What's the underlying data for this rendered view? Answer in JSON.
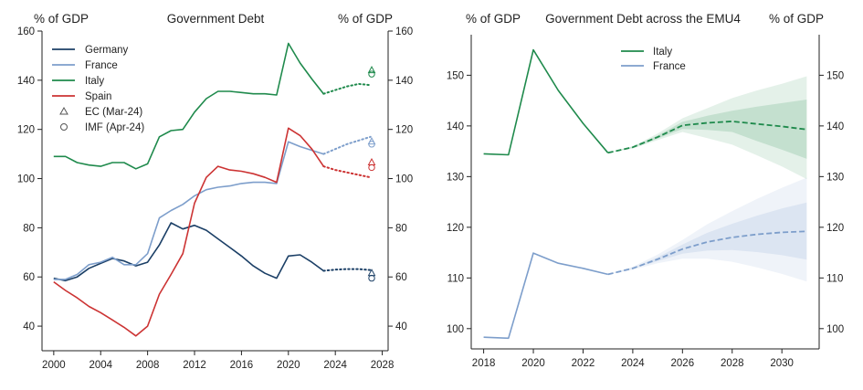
{
  "colors": {
    "germany": "#1b3f66",
    "france": "#7d9ecb",
    "italy": "#1f8a4c",
    "spain": "#cc3333",
    "axis": "#222222"
  },
  "chart_data": [
    {
      "type": "line",
      "title": "Government Debt",
      "ylabel_left": "% of GDP",
      "ylabel_right": "% of GDP",
      "xlim": [
        1999,
        2028.5
      ],
      "ylim": [
        30,
        160
      ],
      "x_ticks": [
        2000,
        2004,
        2008,
        2012,
        2016,
        2020,
        2024,
        2028
      ],
      "y_ticks": [
        40,
        60,
        80,
        100,
        120,
        140,
        160
      ],
      "legend_position": "top-left",
      "series": [
        {
          "name": "Germany",
          "color_key": "germany",
          "x": [
            2000,
            2001,
            2002,
            2003,
            2004,
            2005,
            2006,
            2007,
            2008,
            2009,
            2010,
            2011,
            2012,
            2013,
            2014,
            2015,
            2016,
            2017,
            2018,
            2019,
            2020,
            2021,
            2022,
            2023
          ],
          "values": [
            59.5,
            58.5,
            60,
            63.5,
            65.5,
            67.5,
            66.5,
            64.5,
            66,
            73,
            82,
            79.5,
            81,
            79,
            75.5,
            72,
            68.5,
            64.5,
            61.5,
            59.5,
            68.5,
            69,
            66,
            62.5
          ],
          "projection_x": [
            2023,
            2024,
            2025,
            2026,
            2027
          ],
          "projection": [
            62.5,
            63,
            63.2,
            63.2,
            62.8
          ]
        },
        {
          "name": "France",
          "color_key": "france",
          "x": [
            2000,
            2001,
            2002,
            2003,
            2004,
            2005,
            2006,
            2007,
            2008,
            2009,
            2010,
            2011,
            2012,
            2013,
            2014,
            2015,
            2016,
            2017,
            2018,
            2019,
            2020,
            2021,
            2022,
            2023
          ],
          "values": [
            59,
            59,
            61,
            65,
            66,
            68,
            65,
            65,
            69.5,
            84,
            87,
            89.5,
            93,
            95.5,
            96.5,
            97,
            98,
            98.5,
            98.5,
            98,
            115,
            113,
            111.5,
            110
          ],
          "projection_x": [
            2023,
            2024,
            2025,
            2026,
            2027
          ],
          "projection": [
            110,
            112,
            114,
            115.5,
            117
          ]
        },
        {
          "name": "Italy",
          "color_key": "italy",
          "x": [
            2000,
            2001,
            2002,
            2003,
            2004,
            2005,
            2006,
            2007,
            2008,
            2009,
            2010,
            2011,
            2012,
            2013,
            2014,
            2015,
            2016,
            2017,
            2018,
            2019,
            2020,
            2021,
            2022,
            2023
          ],
          "values": [
            109,
            109,
            106.5,
            105.5,
            105,
            106.5,
            106.5,
            104,
            106,
            117,
            119.5,
            120,
            127,
            132.5,
            135.5,
            135.5,
            135,
            134.5,
            134.5,
            134,
            155,
            147,
            140.5,
            134.5
          ],
          "projection_x": [
            2023,
            2024,
            2025,
            2026,
            2027
          ],
          "projection": [
            134.5,
            136,
            137.5,
            138.5,
            138
          ]
        },
        {
          "name": "Spain",
          "color_key": "spain",
          "x": [
            2000,
            2001,
            2002,
            2003,
            2004,
            2005,
            2006,
            2007,
            2008,
            2009,
            2010,
            2011,
            2012,
            2013,
            2014,
            2015,
            2016,
            2017,
            2018,
            2019,
            2020,
            2021,
            2022,
            2023
          ],
          "values": [
            58,
            54.5,
            51.5,
            48,
            45.5,
            42.5,
            39.5,
            36,
            40,
            53,
            61,
            69.5,
            90,
            100.5,
            105,
            103.5,
            103,
            102,
            100.5,
            98.5,
            120.5,
            117.5,
            112,
            105
          ],
          "projection_x": [
            2023,
            2024,
            2025,
            2026,
            2027
          ],
          "projection": [
            105,
            103.5,
            102.5,
            101.5,
            100.5
          ]
        }
      ],
      "markers": {
        "ec": {
          "label": "EC (Mar-24)",
          "x": 2027.1,
          "points": [
            {
              "series": "Germany",
              "value": 61.5
            },
            {
              "series": "France",
              "value": 115
            },
            {
              "series": "Italy",
              "value": 144
            },
            {
              "series": "Spain",
              "value": 106.5
            }
          ]
        },
        "imf": {
          "label": "IMF (Apr-24)",
          "x": 2027.1,
          "points": [
            {
              "series": "Germany",
              "value": 59.5
            },
            {
              "series": "France",
              "value": 114
            },
            {
              "series": "Italy",
              "value": 142.5
            },
            {
              "series": "Spain",
              "value": 104.5
            }
          ]
        }
      }
    },
    {
      "type": "line",
      "title": "Government Debt across the EMU4",
      "ylabel_left": "% of GDP",
      "ylabel_right": "% of GDP",
      "xlim": [
        2017.5,
        2031.5
      ],
      "ylim": [
        96,
        158
      ],
      "x_ticks": [
        2018,
        2020,
        2022,
        2024,
        2026,
        2028,
        2030
      ],
      "y_ticks": [
        100,
        110,
        120,
        130,
        140,
        150
      ],
      "legend_position": "top-center",
      "series": [
        {
          "name": "Italy",
          "color_key": "italy",
          "x": [
            2018,
            2019,
            2020,
            2021,
            2022,
            2023
          ],
          "values": [
            134.5,
            134.3,
            155,
            147,
            140.5,
            134.7
          ],
          "projection_x": [
            2023,
            2024,
            2025,
            2026,
            2027,
            2028,
            2029,
            2030,
            2031
          ],
          "projection": [
            134.7,
            135.8,
            137.8,
            140.1,
            140.6,
            140.9,
            140.4,
            139.9,
            139.3
          ],
          "band_outer_upper": [
            134.7,
            136,
            138.5,
            141.5,
            143.5,
            145.5,
            147,
            148.3,
            149.8
          ],
          "band_outer_lower": [
            134.7,
            135.5,
            137.2,
            138.8,
            137.6,
            136.3,
            134.2,
            132,
            129.5
          ],
          "band_inner_upper": [
            134.7,
            135.9,
            138.1,
            140.8,
            142,
            143,
            143.8,
            144.5,
            145.2
          ],
          "band_inner_lower": [
            134.7,
            135.7,
            137.5,
            139.4,
            139.2,
            138.8,
            137,
            135.3,
            133.5
          ]
        },
        {
          "name": "France",
          "color_key": "france",
          "x": [
            2018,
            2019,
            2020,
            2021,
            2022,
            2023
          ],
          "values": [
            98.3,
            98.1,
            114.9,
            112.9,
            111.9,
            110.7
          ],
          "projection_x": [
            2023,
            2024,
            2025,
            2026,
            2027,
            2028,
            2029,
            2030,
            2031
          ],
          "projection": [
            110.7,
            111.9,
            113.7,
            115.7,
            117.1,
            118,
            118.6,
            119,
            119.2
          ],
          "band_outer_upper": [
            110.7,
            112.2,
            114.6,
            117.5,
            120.6,
            123.2,
            125.6,
            127.8,
            129.8
          ],
          "band_outer_lower": [
            110.7,
            111.6,
            112.9,
            113.8,
            113.8,
            113.2,
            112.1,
            110.8,
            109.3
          ],
          "band_inner_upper": [
            110.7,
            112,
            114.1,
            116.6,
            118.9,
            120.7,
            122.3,
            123.7,
            124.9
          ],
          "band_inner_lower": [
            110.7,
            111.8,
            113.3,
            114.8,
            115.4,
            115.5,
            115.1,
            114.5,
            113.6
          ]
        }
      ]
    }
  ]
}
